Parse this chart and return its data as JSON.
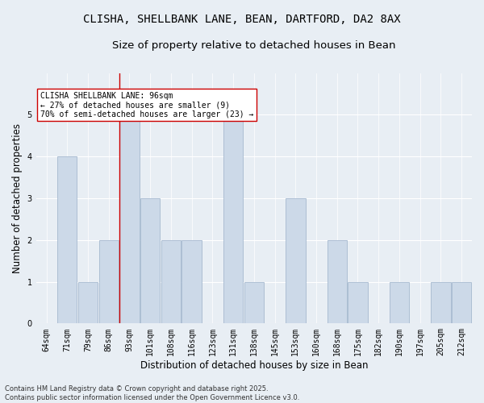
{
  "title_line1": "CLISHA, SHELLBANK LANE, BEAN, DARTFORD, DA2 8AX",
  "title_line2": "Size of property relative to detached houses in Bean",
  "xlabel": "Distribution of detached houses by size in Bean",
  "ylabel": "Number of detached properties",
  "categories": [
    "64sqm",
    "71sqm",
    "79sqm",
    "86sqm",
    "93sqm",
    "101sqm",
    "108sqm",
    "116sqm",
    "123sqm",
    "131sqm",
    "138sqm",
    "145sqm",
    "153sqm",
    "160sqm",
    "168sqm",
    "175sqm",
    "182sqm",
    "190sqm",
    "197sqm",
    "205sqm",
    "212sqm"
  ],
  "values": [
    0,
    4,
    1,
    2,
    5,
    3,
    2,
    2,
    0,
    5,
    1,
    0,
    3,
    0,
    2,
    1,
    0,
    1,
    0,
    1,
    1
  ],
  "bar_color": "#ccd9e8",
  "bar_edge_color": "#9ab0c8",
  "highlight_index": 4,
  "highlight_line_color": "#cc0000",
  "ylim": [
    0,
    6
  ],
  "yticks": [
    0,
    1,
    2,
    3,
    4,
    5,
    6
  ],
  "annotation_box_text": "CLISHA SHELLBANK LANE: 96sqm\n← 27% of detached houses are smaller (9)\n70% of semi-detached houses are larger (23) →",
  "annotation_box_color": "#ffffff",
  "annotation_box_edge_color": "#cc0000",
  "footer_text": "Contains HM Land Registry data © Crown copyright and database right 2025.\nContains public sector information licensed under the Open Government Licence v3.0.",
  "background_color": "#e8eef4",
  "grid_color": "#ffffff",
  "title_fontsize": 10,
  "subtitle_fontsize": 9.5,
  "axis_label_fontsize": 8.5,
  "tick_fontsize": 7,
  "annotation_fontsize": 7,
  "footer_fontsize": 6
}
